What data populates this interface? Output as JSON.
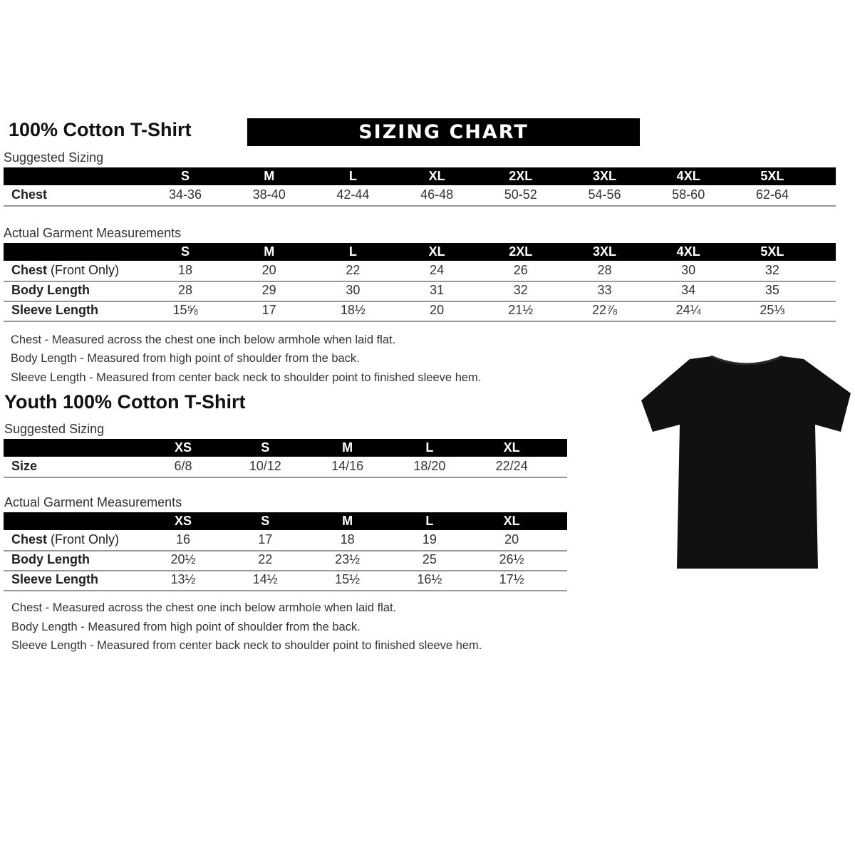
{
  "banner": "SIZING CHART",
  "adult": {
    "title": "100% Cotton T-Shirt",
    "suggested_label": "Suggested Sizing",
    "sizes": [
      "S",
      "M",
      "L",
      "XL",
      "2XL",
      "3XL",
      "4XL",
      "5XL"
    ],
    "suggested_rows": [
      {
        "label": "Chest",
        "label_extra": "",
        "values": [
          "34-36",
          "38-40",
          "42-44",
          "46-48",
          "50-52",
          "54-56",
          "58-60",
          "62-64"
        ]
      }
    ],
    "actual_label": "Actual Garment Measurements",
    "actual_rows": [
      {
        "label": "Chest",
        "label_extra": " (Front Only)",
        "values": [
          "18",
          "20",
          "22",
          "24",
          "26",
          "28",
          "30",
          "32"
        ]
      },
      {
        "label": "Body Length",
        "label_extra": "",
        "values": [
          "28",
          "29",
          "30",
          "31",
          "32",
          "33",
          "34",
          "35"
        ]
      },
      {
        "label": "Sleeve Length",
        "label_extra": "",
        "values": [
          "15⅝",
          "17",
          "18½",
          "20",
          "21½",
          "22⅞",
          "24¼",
          "25⅓"
        ]
      }
    ],
    "notes": [
      "Chest - Measured across the chest one inch below armhole when laid flat.",
      "Body Length - Measured from high point of shoulder from the back.",
      "Sleeve Length - Measured from center back neck to shoulder point to finished sleeve hem."
    ]
  },
  "youth": {
    "title": "Youth 100% Cotton T-Shirt",
    "suggested_label": "Suggested Sizing",
    "sizes": [
      "XS",
      "S",
      "M",
      "L",
      "XL"
    ],
    "suggested_rows": [
      {
        "label": "Size",
        "label_extra": "",
        "values": [
          "6/8",
          "10/12",
          "14/16",
          "18/20",
          "22/24"
        ]
      }
    ],
    "actual_label": "Actual Garment Measurements",
    "actual_rows": [
      {
        "label": "Chest",
        "label_extra": " (Front Only)",
        "values": [
          "16",
          "17",
          "18",
          "19",
          "20"
        ]
      },
      {
        "label": "Body Length",
        "label_extra": "",
        "values": [
          "20½",
          "22",
          "23½",
          "25",
          "26½"
        ]
      },
      {
        "label": "Sleeve Length",
        "label_extra": "",
        "values": [
          "13½",
          "14½",
          "15½",
          "16½",
          "17½"
        ]
      }
    ],
    "notes": [
      "Chest - Measured across the chest one inch below armhole when laid flat.",
      "Body Length - Measured from high point of shoulder from the back.",
      "Sleeve Length - Measured from center back neck to shoulder point to finished sleeve hem."
    ]
  },
  "image": {
    "icon": "tshirt-icon",
    "color": "#111111"
  }
}
